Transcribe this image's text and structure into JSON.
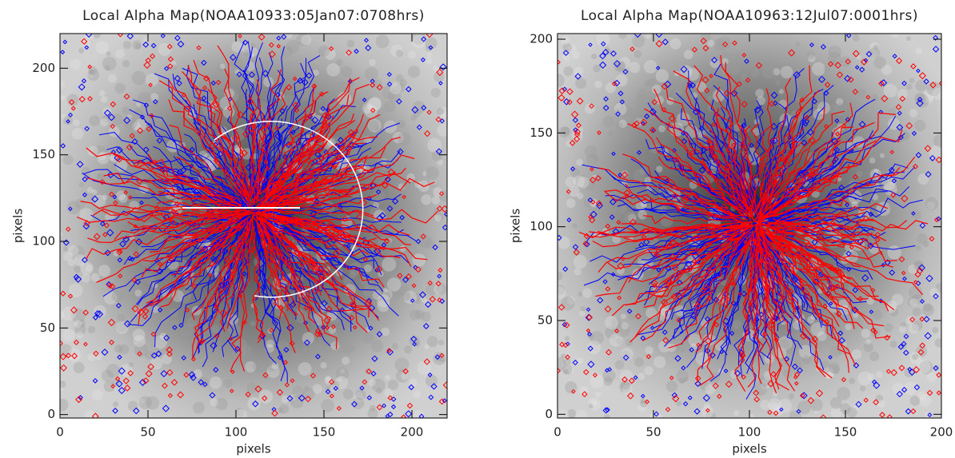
{
  "chart_data": [
    {
      "type": "image",
      "title": "Local Alpha Map(NOAA10933:05Jan07:0708hrs)",
      "xlabel": "pixels",
      "ylabel": "pixels",
      "xlim": [
        0,
        220
      ],
      "ylim": [
        -2,
        220
      ],
      "xticks": [
        0,
        50,
        100,
        150,
        200
      ],
      "yticks": [
        0,
        50,
        100,
        150,
        200
      ]
    },
    {
      "type": "image",
      "title": "Local Alpha Map(NOAA10963:12Jul07:0001hrs)",
      "xlabel": "pixels",
      "ylabel": "pixels",
      "xlim": [
        0,
        200
      ],
      "ylim": [
        -2,
        203
      ],
      "xticks": [
        0,
        50,
        100,
        150,
        200
      ],
      "yticks": [
        0,
        50,
        100,
        150,
        200
      ]
    }
  ]
}
